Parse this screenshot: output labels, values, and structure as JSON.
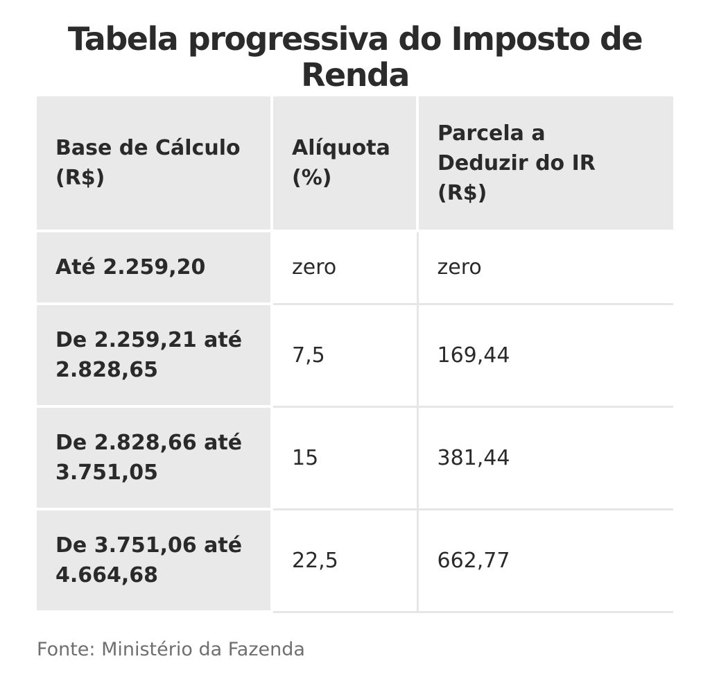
{
  "title": "Tabela progressiva do Imposto de Renda",
  "table": {
    "headers": [
      "Base de Cálculo (R$)",
      "Alíquota (%)",
      "Parcela a Deduzir do IR (R$)"
    ],
    "rows": [
      {
        "base": "Até 2.259,20",
        "aliquota": "zero",
        "parcela": "zero"
      },
      {
        "base": "De 2.259,21 até 2.828,65",
        "aliquota": "7,5",
        "parcela": "169,44"
      },
      {
        "base": "De 2.828,66 até 3.751,05",
        "aliquota": "15",
        "parcela": "381,44"
      },
      {
        "base": "De 3.751,06 até 4.664,68",
        "aliquota": "22,5",
        "parcela": "662,77"
      }
    ]
  },
  "source": "Fonte: Ministério da Fazenda"
}
